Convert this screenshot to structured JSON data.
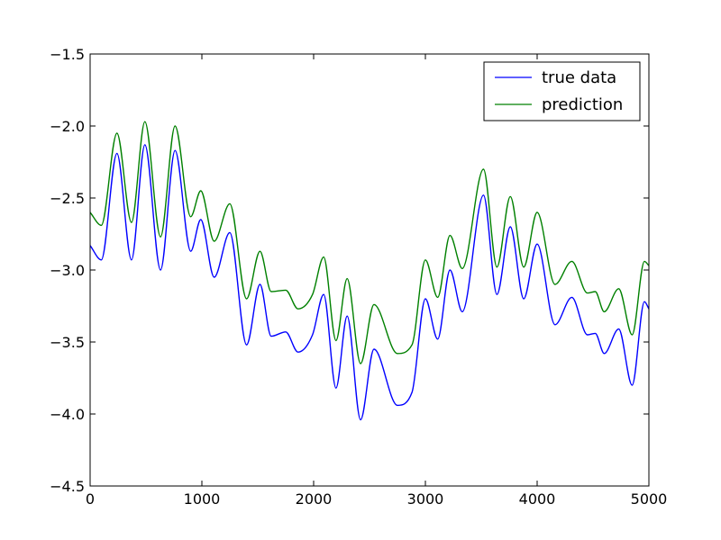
{
  "chart_data": {
    "type": "line",
    "title": "",
    "xlabel": "",
    "ylabel": "",
    "xlim": [
      0,
      5000
    ],
    "ylim": [
      -4.5,
      -1.5
    ],
    "grid": false,
    "legend_position": "top-right",
    "x_ticks": [
      0,
      1000,
      2000,
      3000,
      4000,
      5000
    ],
    "x_tick_labels": [
      "0",
      "1000",
      "2000",
      "3000",
      "4000",
      "5000"
    ],
    "y_ticks": [
      -1.5,
      -2.0,
      -2.5,
      -3.0,
      -3.5,
      -4.0,
      -4.5
    ],
    "y_tick_labels": [
      "−1.5",
      "−2.0",
      "−2.5",
      "−3.0",
      "−3.5",
      "−4.0",
      "−4.5"
    ],
    "series": [
      {
        "name": "true data",
        "color": "#0000ff",
        "x": [
          0,
          100,
          240,
          370,
          490,
          630,
          760,
          900,
          990,
          1110,
          1250,
          1400,
          1520,
          1620,
          1750,
          1860,
          1990,
          2090,
          2200,
          2300,
          2420,
          2540,
          2750,
          2880,
          3000,
          3110,
          3220,
          3330,
          3520,
          3640,
          3760,
          3880,
          4000,
          4160,
          4310,
          4450,
          4520,
          4600,
          4730,
          4850,
          4960,
          5000
        ],
        "y": [
          -2.83,
          -2.93,
          -2.19,
          -2.93,
          -2.13,
          -3.0,
          -2.17,
          -2.87,
          -2.65,
          -3.05,
          -2.74,
          -3.52,
          -3.1,
          -3.46,
          -3.43,
          -3.57,
          -3.45,
          -3.17,
          -3.82,
          -3.32,
          -4.04,
          -3.55,
          -3.94,
          -3.85,
          -3.2,
          -3.48,
          -3.0,
          -3.29,
          -2.48,
          -3.17,
          -2.7,
          -3.2,
          -2.82,
          -3.38,
          -3.19,
          -3.45,
          -3.44,
          -3.58,
          -3.41,
          -3.8,
          -3.22,
          -3.27
        ]
      },
      {
        "name": "prediction",
        "color": "#008000",
        "x": [
          0,
          100,
          240,
          370,
          490,
          630,
          760,
          900,
          990,
          1110,
          1250,
          1400,
          1520,
          1620,
          1750,
          1860,
          1990,
          2090,
          2200,
          2300,
          2420,
          2540,
          2750,
          2880,
          3000,
          3110,
          3220,
          3330,
          3520,
          3640,
          3760,
          3880,
          4000,
          4160,
          4310,
          4450,
          4520,
          4600,
          4730,
          4850,
          4960,
          5000
        ],
        "y": [
          -2.6,
          -2.69,
          -2.05,
          -2.67,
          -1.97,
          -2.77,
          -2.0,
          -2.63,
          -2.45,
          -2.8,
          -2.54,
          -3.2,
          -2.87,
          -3.15,
          -3.14,
          -3.27,
          -3.17,
          -2.91,
          -3.49,
          -3.06,
          -3.65,
          -3.24,
          -3.58,
          -3.52,
          -2.93,
          -3.19,
          -2.76,
          -2.99,
          -2.3,
          -2.98,
          -2.49,
          -2.98,
          -2.6,
          -3.1,
          -2.94,
          -3.16,
          -3.15,
          -3.29,
          -3.13,
          -3.45,
          -2.94,
          -2.97
        ]
      }
    ]
  }
}
